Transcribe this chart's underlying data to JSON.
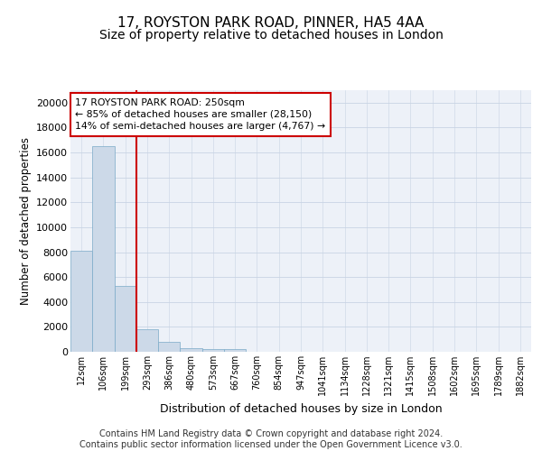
{
  "title1": "17, ROYSTON PARK ROAD, PINNER, HA5 4AA",
  "title2": "Size of property relative to detached houses in London",
  "xlabel": "Distribution of detached houses by size in London",
  "ylabel": "Number of detached properties",
  "footnote": "Contains HM Land Registry data © Crown copyright and database right 2024.\nContains public sector information licensed under the Open Government Licence v3.0.",
  "categories": [
    "12sqm",
    "106sqm",
    "199sqm",
    "293sqm",
    "386sqm",
    "480sqm",
    "573sqm",
    "667sqm",
    "760sqm",
    "854sqm",
    "947sqm",
    "1041sqm",
    "1134sqm",
    "1228sqm",
    "1321sqm",
    "1415sqm",
    "1508sqm",
    "1602sqm",
    "1695sqm",
    "1789sqm",
    "1882sqm"
  ],
  "bar_heights": [
    8100,
    16500,
    5300,
    1800,
    800,
    300,
    250,
    250,
    0,
    0,
    0,
    0,
    0,
    0,
    0,
    0,
    0,
    0,
    0,
    0,
    0
  ],
  "bar_color": "#ccd9e8",
  "bar_edge_color": "#7aaac8",
  "vline_x": 2.5,
  "vline_color": "#cc0000",
  "annotation_text": "17 ROYSTON PARK ROAD: 250sqm\n← 85% of detached houses are smaller (28,150)\n14% of semi-detached houses are larger (4,767) →",
  "annotation_box_color": "#cc0000",
  "ylim": [
    0,
    21000
  ],
  "yticks": [
    0,
    2000,
    4000,
    6000,
    8000,
    10000,
    12000,
    14000,
    16000,
    18000,
    20000
  ],
  "grid_color": "#c8d4e4",
  "bg_color": "#edf1f8",
  "title1_fontsize": 11,
  "title2_fontsize": 10,
  "footnote_fontsize": 7
}
